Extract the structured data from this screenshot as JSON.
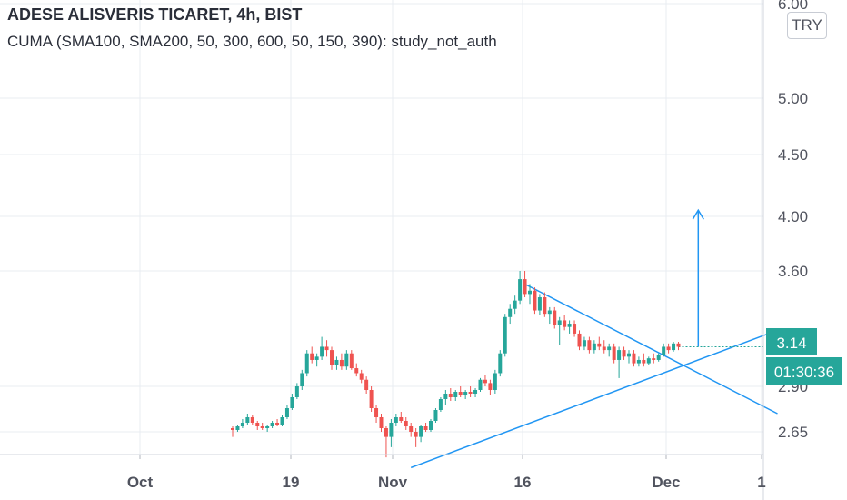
{
  "header": {
    "symbol_title": "ADESE ALISVERIS TICARET, 4h, BIST",
    "study_line": "CUMA (SMA100, SMA200, 50, 300, 600, 50, 150, 390): study_not_auth"
  },
  "currency_button": "TRY",
  "price_tag": {
    "value": "3.14",
    "color": "#26a69a"
  },
  "countdown_tag": {
    "value": "01:30:36",
    "color": "#26a69a"
  },
  "colors": {
    "up": "#26a69a",
    "down": "#ef5350",
    "drawing": "#2196f3",
    "grid": "#e9ecf2",
    "axis_text": "#50535e"
  },
  "chart_data": {
    "type": "candlestick",
    "title": "ADESE ALISVERIS TICARET, 4h, BIST",
    "currency": "TRY",
    "y_scale": "log",
    "y_tick_labels": [
      "6.00",
      "5.00",
      "4.50",
      "4.00",
      "3.60",
      "2.90",
      "2.65"
    ],
    "x_tick_labels": [
      "Oct",
      "19",
      "Nov",
      "16",
      "Dec",
      "1"
    ],
    "last_price": 3.14,
    "series": [
      {
        "name": "ADESE",
        "ohlc": [
          [
            2.67,
            2.68,
            2.64,
            2.66
          ],
          [
            2.66,
            2.69,
            2.65,
            2.68
          ],
          [
            2.68,
            2.72,
            2.67,
            2.7
          ],
          [
            2.7,
            2.75,
            2.69,
            2.73
          ],
          [
            2.73,
            2.74,
            2.69,
            2.7
          ],
          [
            2.7,
            2.71,
            2.66,
            2.68
          ],
          [
            2.68,
            2.7,
            2.66,
            2.67
          ],
          [
            2.67,
            2.69,
            2.65,
            2.68
          ],
          [
            2.68,
            2.71,
            2.67,
            2.7
          ],
          [
            2.7,
            2.72,
            2.68,
            2.69
          ],
          [
            2.69,
            2.74,
            2.68,
            2.73
          ],
          [
            2.73,
            2.8,
            2.72,
            2.78
          ],
          [
            2.78,
            2.86,
            2.77,
            2.84
          ],
          [
            2.84,
            2.92,
            2.83,
            2.9
          ],
          [
            2.9,
            3.0,
            2.88,
            2.98
          ],
          [
            2.98,
            3.12,
            2.96,
            3.1
          ],
          [
            3.1,
            3.14,
            3.04,
            3.06
          ],
          [
            3.06,
            3.1,
            3.02,
            3.08
          ],
          [
            3.08,
            3.2,
            3.06,
            3.14
          ],
          [
            3.14,
            3.18,
            3.08,
            3.12
          ],
          [
            3.12,
            3.14,
            3.0,
            3.03
          ],
          [
            3.03,
            3.08,
            3.0,
            3.06
          ],
          [
            3.06,
            3.1,
            3.0,
            3.02
          ],
          [
            3.02,
            3.12,
            3.0,
            3.1
          ],
          [
            3.1,
            3.12,
            3.0,
            3.01
          ],
          [
            3.01,
            3.04,
            2.96,
            2.98
          ],
          [
            2.98,
            3.0,
            2.92,
            2.94
          ],
          [
            2.94,
            2.96,
            2.86,
            2.88
          ],
          [
            2.88,
            2.9,
            2.76,
            2.78
          ],
          [
            2.78,
            2.8,
            2.7,
            2.73
          ],
          [
            2.73,
            2.75,
            2.65,
            2.67
          ],
          [
            2.67,
            2.68,
            2.6,
            2.64
          ],
          [
            2.64,
            2.72,
            2.62,
            2.7
          ],
          [
            2.7,
            2.75,
            2.68,
            2.73
          ],
          [
            2.73,
            2.76,
            2.7,
            2.71
          ],
          [
            2.71,
            2.73,
            2.66,
            2.68
          ],
          [
            2.68,
            2.7,
            2.64,
            2.65
          ],
          [
            2.65,
            2.67,
            2.62,
            2.64
          ],
          [
            2.64,
            2.69,
            2.63,
            2.68
          ],
          [
            2.68,
            2.7,
            2.65,
            2.66
          ],
          [
            2.66,
            2.72,
            2.65,
            2.71
          ],
          [
            2.71,
            2.78,
            2.7,
            2.77
          ],
          [
            2.77,
            2.84,
            2.76,
            2.83
          ],
          [
            2.83,
            2.88,
            2.8,
            2.86
          ],
          [
            2.86,
            2.89,
            2.82,
            2.84
          ],
          [
            2.84,
            2.88,
            2.82,
            2.87
          ],
          [
            2.87,
            2.9,
            2.84,
            2.85
          ],
          [
            2.85,
            2.88,
            2.83,
            2.87
          ],
          [
            2.87,
            2.9,
            2.84,
            2.86
          ],
          [
            2.86,
            2.89,
            2.84,
            2.88
          ],
          [
            2.88,
            2.95,
            2.87,
            2.94
          ],
          [
            2.94,
            2.97,
            2.9,
            2.92
          ],
          [
            2.92,
            2.94,
            2.85,
            2.88
          ],
          [
            2.88,
            3.0,
            2.86,
            2.98
          ],
          [
            2.98,
            3.12,
            2.96,
            3.1
          ],
          [
            3.1,
            3.34,
            3.08,
            3.32
          ],
          [
            3.32,
            3.4,
            3.28,
            3.37
          ],
          [
            3.37,
            3.45,
            3.34,
            3.42
          ],
          [
            3.42,
            3.6,
            3.4,
            3.55
          ],
          [
            3.55,
            3.6,
            3.44,
            3.46
          ],
          [
            3.46,
            3.52,
            3.4,
            3.48
          ],
          [
            3.48,
            3.5,
            3.34,
            3.36
          ],
          [
            3.36,
            3.46,
            3.33,
            3.44
          ],
          [
            3.44,
            3.47,
            3.32,
            3.34
          ],
          [
            3.34,
            3.38,
            3.28,
            3.36
          ],
          [
            3.36,
            3.38,
            3.25,
            3.27
          ],
          [
            3.27,
            3.32,
            3.15,
            3.3
          ],
          [
            3.3,
            3.33,
            3.24,
            3.26
          ],
          [
            3.26,
            3.3,
            3.22,
            3.28
          ],
          [
            3.28,
            3.3,
            3.2,
            3.22
          ],
          [
            3.22,
            3.24,
            3.12,
            3.14
          ],
          [
            3.14,
            3.2,
            3.12,
            3.18
          ],
          [
            3.18,
            3.2,
            3.1,
            3.12
          ],
          [
            3.12,
            3.18,
            3.1,
            3.16
          ],
          [
            3.16,
            3.2,
            3.12,
            3.14
          ],
          [
            3.14,
            3.18,
            3.1,
            3.12
          ],
          [
            3.12,
            3.16,
            3.08,
            3.14
          ],
          [
            3.14,
            3.16,
            3.04,
            3.06
          ],
          [
            3.06,
            3.14,
            2.95,
            3.12
          ],
          [
            3.12,
            3.14,
            3.06,
            3.08
          ],
          [
            3.08,
            3.12,
            3.04,
            3.1
          ],
          [
            3.1,
            3.12,
            3.02,
            3.04
          ],
          [
            3.04,
            3.08,
            3.02,
            3.06
          ],
          [
            3.06,
            3.1,
            3.02,
            3.04
          ],
          [
            3.04,
            3.08,
            3.03,
            3.07
          ],
          [
            3.07,
            3.1,
            3.04,
            3.06
          ],
          [
            3.06,
            3.1,
            3.05,
            3.09
          ],
          [
            3.09,
            3.16,
            3.08,
            3.14
          ],
          [
            3.14,
            3.16,
            3.1,
            3.12
          ],
          [
            3.12,
            3.17,
            3.11,
            3.16
          ],
          [
            3.16,
            3.17,
            3.12,
            3.14
          ]
        ]
      }
    ],
    "drawings": {
      "resistance_trendline": {
        "from": {
          "bar": 59,
          "price": 3.52
        },
        "to": {
          "bar": 110,
          "price": 2.75
        }
      },
      "support_trendline": {
        "from": {
          "bar": 36,
          "price": 2.58
        },
        "to": {
          "bar": 110,
          "price": 3.24
        }
      },
      "target_arrow": {
        "bar": 94,
        "from_price": 3.14,
        "to_price": 4.05
      }
    }
  }
}
